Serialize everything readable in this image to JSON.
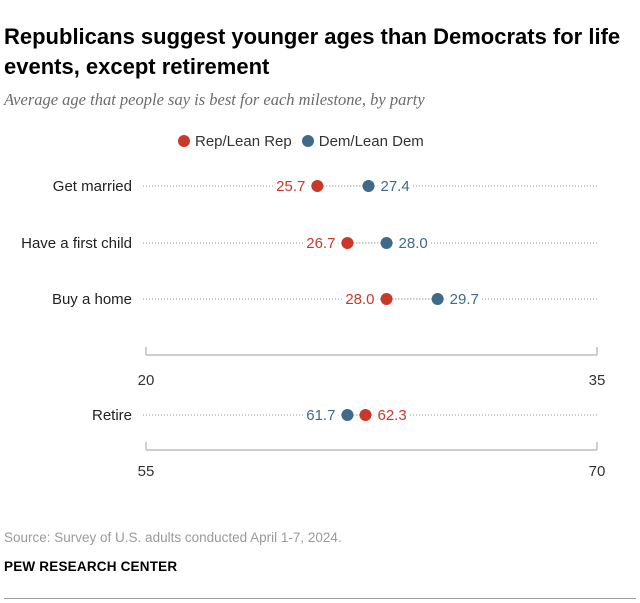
{
  "header": {
    "title": "Republicans suggest younger ages than Democrats for life events, except retirement",
    "subtitle": "Average age that people say is best for each milestone, by party"
  },
  "legend": [
    {
      "label": "Rep/Lean Rep",
      "color": "#c9392b"
    },
    {
      "label": "Dem/Lean Dem",
      "color": "#3f6a8a"
    }
  ],
  "chart_data": [
    {
      "type": "dot",
      "title": "Average age that people say is best for each milestone, by party",
      "xlim": [
        20,
        35
      ],
      "ticks": [
        "20",
        "35"
      ],
      "series": [
        {
          "name": "Rep/Lean Rep",
          "color": "#c9392b"
        },
        {
          "name": "Dem/Lean Dem",
          "color": "#3f6a8a"
        }
      ],
      "rows": [
        {
          "label": "Get married",
          "rep": 25.7,
          "dem": 27.4,
          "rep_label": "25.7",
          "dem_label": "27.4"
        },
        {
          "label": "Have a first child",
          "rep": 26.7,
          "dem": 28.0,
          "rep_label": "26.7",
          "dem_label": "28.0"
        },
        {
          "label": "Buy a home",
          "rep": 28.0,
          "dem": 29.7,
          "rep_label": "28.0",
          "dem_label": "29.7"
        }
      ]
    },
    {
      "type": "dot",
      "xlim": [
        55,
        70
      ],
      "ticks": [
        "55",
        "70"
      ],
      "series": [
        {
          "name": "Rep/Lean Rep",
          "color": "#c9392b"
        },
        {
          "name": "Dem/Lean Dem",
          "color": "#3f6a8a"
        }
      ],
      "rows": [
        {
          "label": "Retire",
          "rep": 62.3,
          "dem": 61.7,
          "rep_label": "62.3",
          "dem_label": "61.7"
        }
      ]
    }
  ],
  "footer": {
    "source": "Source: Survey of U.S. adults conducted April 1-7, 2024.",
    "org": "PEW RESEARCH CENTER"
  }
}
